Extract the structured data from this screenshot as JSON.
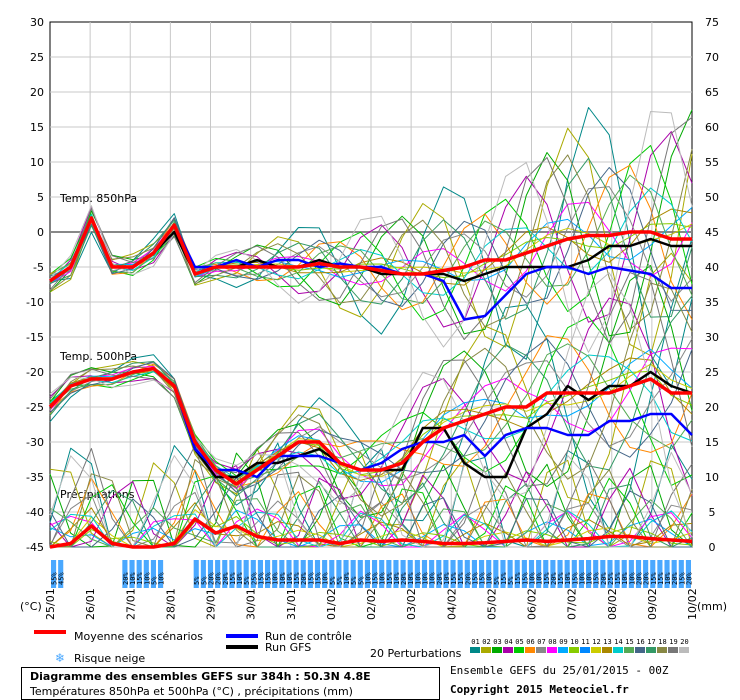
{
  "chart_data": {
    "type": "line",
    "title": "Diagramme des ensembles GEFS sur 384h : 50.3N 4.8E",
    "subtitle": "Températures 850hPa et 500hPa (°C) , précipitations (mm)",
    "left_axis": {
      "unit": "(°C)",
      "range": [
        -45,
        30
      ],
      "ticks": [
        30,
        25,
        20,
        15,
        10,
        5,
        0,
        -5,
        -10,
        -15,
        -20,
        -25,
        -30,
        -35,
        -40,
        -45
      ]
    },
    "right_axis": {
      "unit": "(mm)",
      "range": [
        0,
        75
      ],
      "ticks": [
        75,
        70,
        65,
        60,
        55,
        50,
        45,
        40,
        35,
        30,
        25,
        20,
        15,
        10,
        5,
        0
      ]
    },
    "x_dates": [
      "25/01",
      "26/01",
      "27/01",
      "28/01",
      "29/01",
      "30/01",
      "31/01",
      "01/02",
      "02/02",
      "03/02",
      "04/02",
      "05/02",
      "06/02",
      "07/02",
      "08/02",
      "09/02",
      "10/02"
    ],
    "panel_labels": [
      "Temp. 850hPa",
      "Temp. 500hPa",
      "Précipitations"
    ],
    "snow_risk_percent": [
      "55%",
      "45%",
      "",
      "",
      "",
      "",
      "",
      "",
      "",
      "",
      "20%",
      "10%",
      "15%",
      "10%",
      "5%",
      "10%",
      "",
      "",
      "",
      "",
      "5%",
      "5%",
      "20%",
      "20%",
      "20%",
      "15%",
      "10%",
      "5%",
      "25%",
      "15%",
      "15%",
      "10%",
      "10%",
      "10%",
      "15%",
      "20%",
      "15%",
      "15%",
      "10%",
      "5%",
      "5%",
      "10%",
      "5%",
      "5%",
      "10%",
      "15%",
      "10%",
      "15%",
      "10%",
      "20%",
      "10%",
      "10%",
      "10%",
      "10%",
      "20%",
      "10%",
      "15%",
      "15%",
      "20%",
      "15%",
      "15%",
      "10%",
      "5%",
      "15%",
      "5%",
      "15%",
      "15%",
      "10%",
      "10%",
      "15%",
      "20%",
      "15%",
      "10%",
      "15%",
      "10%",
      "10%",
      "15%",
      "20%",
      "25%",
      "15%",
      "10%",
      "10%",
      "20%",
      "20%",
      "15%",
      "15%",
      "10%",
      "20%",
      "15%",
      "20%"
    ],
    "series": [
      {
        "name": "Moyenne des scénarios",
        "color": "#ff0000",
        "t850": [
          -7,
          -5,
          2,
          -5,
          -5,
          -3,
          1,
          -6,
          -5,
          -5,
          -5,
          -5,
          -5,
          -4.5,
          -5,
          -5,
          -5.5,
          -6,
          -6,
          -5.5,
          -5,
          -4,
          -4,
          -3,
          -2,
          -1,
          -0.5,
          -0.5,
          0,
          0,
          -1,
          -1
        ],
        "t500": [
          -25,
          -22,
          -21,
          -21,
          -20,
          -19.5,
          -22,
          -30,
          -34,
          -36,
          -34,
          -32,
          -30,
          -30,
          -33,
          -34,
          -34,
          -33,
          -30,
          -28,
          -27,
          -26,
          -25,
          -25,
          -23,
          -23,
          -23,
          -23,
          -22,
          -21,
          -23,
          -23
        ],
        "precip": [
          0,
          0.5,
          3,
          0.5,
          0,
          0,
          0.5,
          4,
          2,
          3,
          1.5,
          1,
          1,
          1,
          0.5,
          1,
          0.8,
          1,
          0.8,
          0.5,
          0.5,
          0.6,
          0.8,
          1,
          0.8,
          1,
          1.2,
          1.5,
          1.5,
          1.2,
          1,
          0.8
        ]
      },
      {
        "name": "Run de contrôle",
        "color": "#0000ff",
        "t850": [
          -7,
          -5,
          2,
          -5,
          -5,
          -3,
          1,
          -5,
          -5,
          -4,
          -5,
          -4,
          -4,
          -5,
          -4.5,
          -5,
          -5,
          -6,
          -6,
          -7,
          -12.5,
          -12,
          -9,
          -6,
          -5,
          -5,
          -6,
          -5,
          -5.5,
          -6,
          -8,
          -8
        ],
        "t500": [
          -25,
          -22,
          -21,
          -21,
          -20,
          -19.5,
          -22,
          -31,
          -34,
          -34,
          -35,
          -32,
          -32,
          -32,
          -33,
          -34,
          -33,
          -31,
          -30,
          -30,
          -29,
          -32,
          -29,
          -28,
          -28,
          -29,
          -29,
          -27,
          -27,
          -26,
          -26,
          -29
        ]
      },
      {
        "name": "Run GFS",
        "color": "#000000",
        "t850": [
          -7,
          -5,
          2,
          -5,
          -5,
          -3,
          0,
          -6,
          -5,
          -5,
          -4,
          -5,
          -5,
          -4,
          -5,
          -5,
          -6,
          -6,
          -6,
          -6,
          -7,
          -6,
          -5,
          -5,
          -5,
          -5,
          -4,
          -2,
          -2,
          -1,
          -2,
          -2
        ],
        "t500": [
          -25,
          -22,
          -21,
          -21,
          -20,
          -19.5,
          -22,
          -31,
          -35,
          -35,
          -33,
          -33,
          -32,
          -31,
          -33,
          -34,
          -34,
          -34,
          -28,
          -28,
          -33,
          -35,
          -35,
          -28,
          -26,
          -22,
          -24,
          -22,
          -22,
          -20,
          -22,
          -23
        ]
      }
    ],
    "perturbations_label": "20 Perturbations",
    "perturbation_ids": [
      "01",
      "02",
      "03",
      "04",
      "05",
      "06",
      "07",
      "08",
      "09",
      "10",
      "11",
      "12",
      "13",
      "14",
      "15",
      "16",
      "17",
      "18",
      "19",
      "20"
    ],
    "perturbation_colors": [
      "#008888",
      "#aaaa00",
      "#00aa00",
      "#aa00aa",
      "#00cc00",
      "#ff8800",
      "#888888",
      "#ff00ff",
      "#00aaff",
      "#88cc00",
      "#0088ff",
      "#cccc00",
      "#aa8800",
      "#00cccc",
      "#55aa55",
      "#446688",
      "#339966",
      "#888844",
      "#777777",
      "#bbbbbb"
    ],
    "grid": true,
    "legend_placement": "bottom"
  },
  "legend": {
    "mean_label": "Moyenne des scénarios",
    "snow_label": "Risque neige",
    "control_label": "Run de contrôle",
    "gfs_label": "Run GFS",
    "perturbations_label": "20 Perturbations"
  },
  "footer": {
    "title": "Diagramme des ensembles GEFS sur 384h : 50.3N 4.8E",
    "subtitle": "Températures 850hPa et 500hPa (°C) , précipitations (mm)",
    "run_info": "Ensemble GEFS du 25/01/2015 - 00Z",
    "copyright": "Copyright 2015 Meteociel.fr"
  },
  "colors": {
    "mean": "#ff0000",
    "control": "#0000ff",
    "gfs": "#000000",
    "snow_bg": "#4aa8ff",
    "grid": "#c8c8c8"
  }
}
